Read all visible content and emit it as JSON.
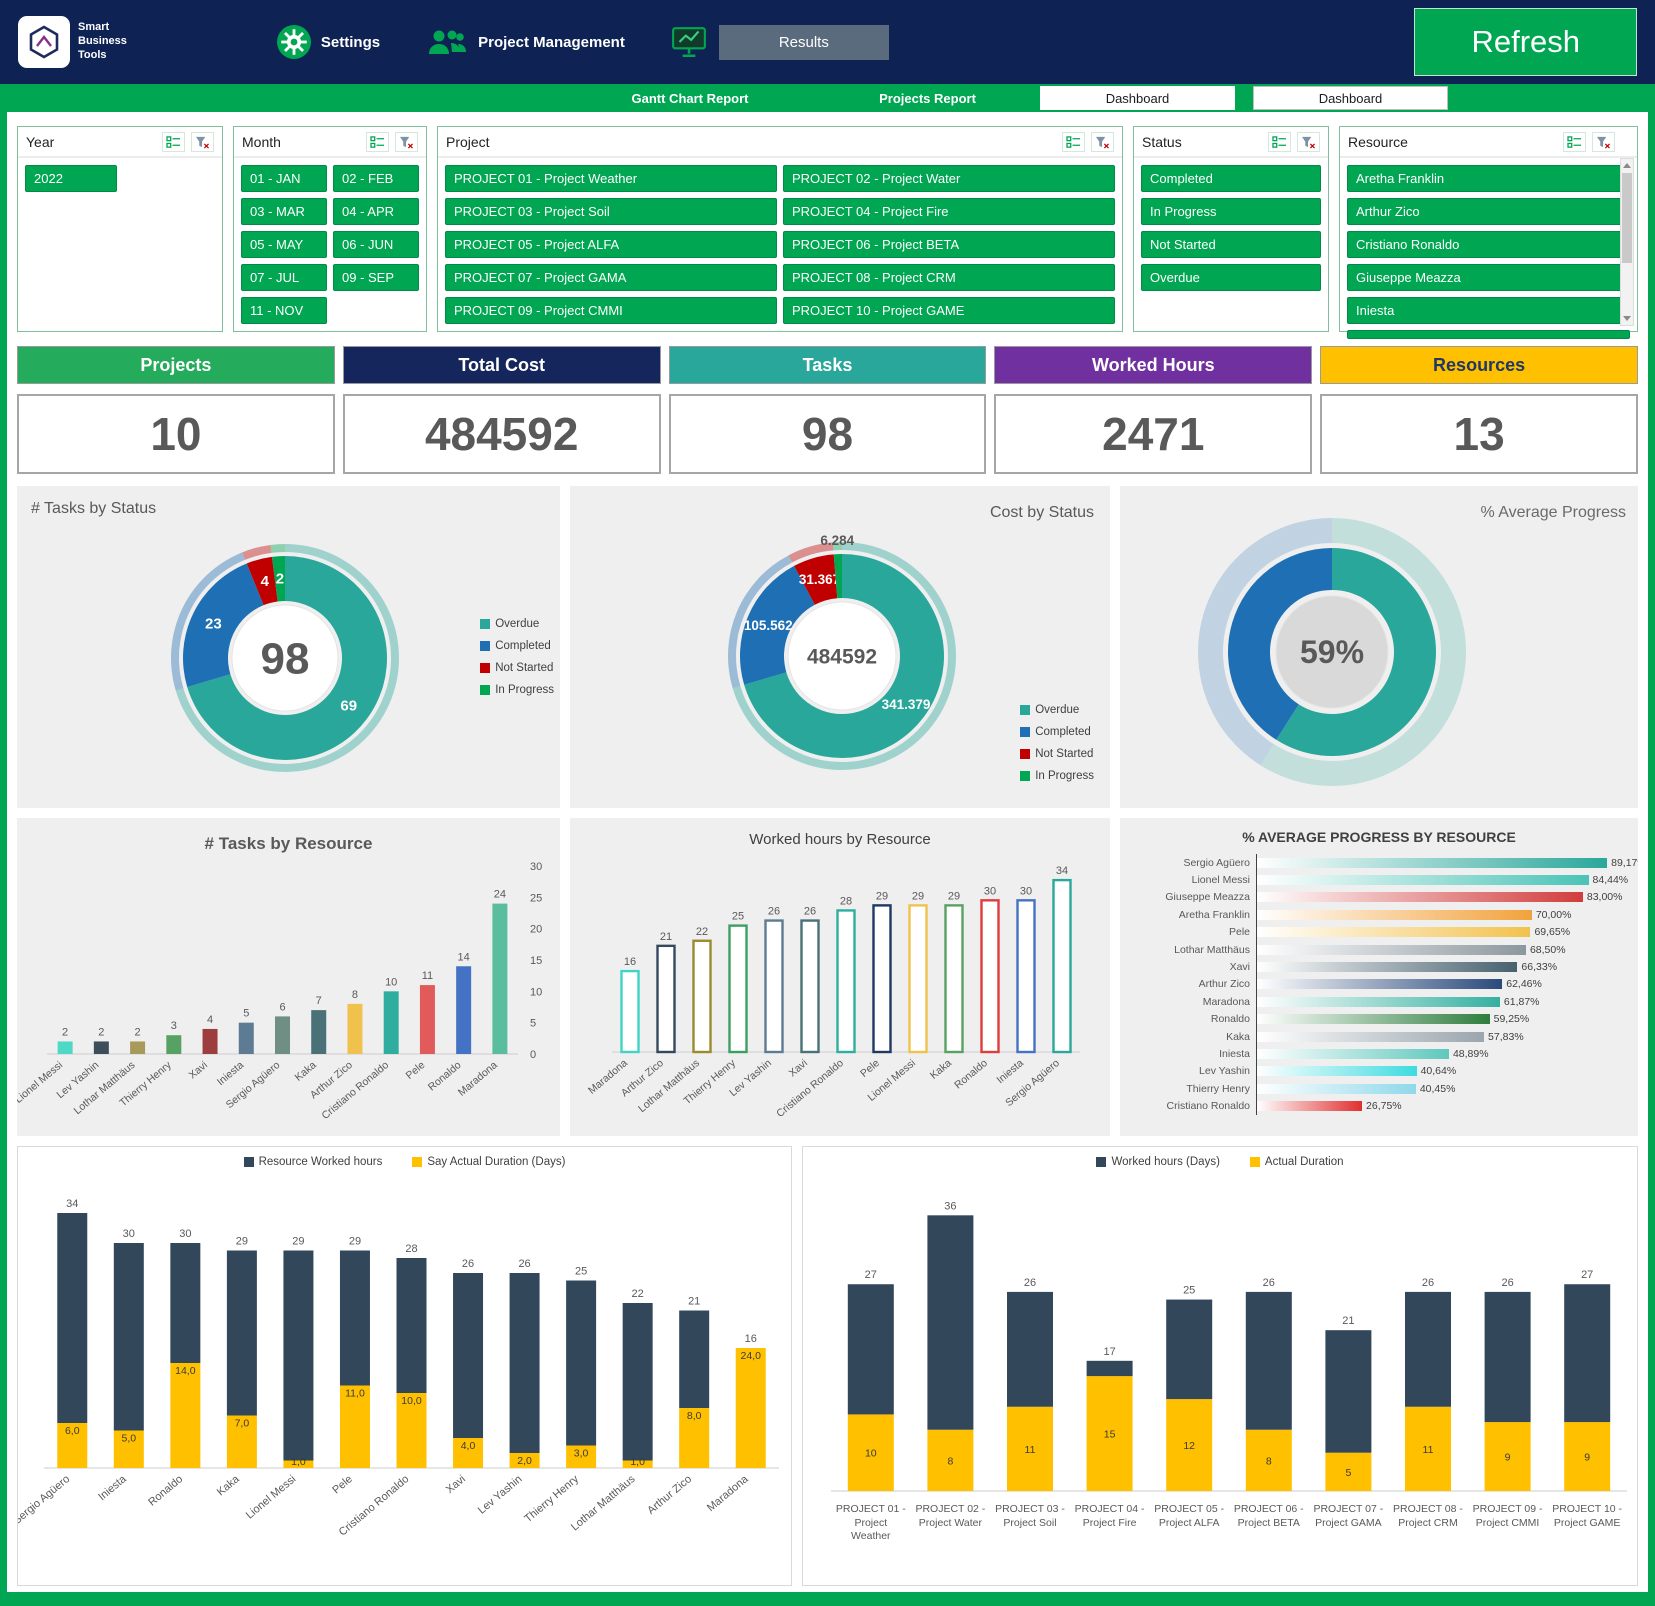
{
  "header": {
    "logo": {
      "line1": "Smart",
      "line2": "Business",
      "line3": "Tools"
    },
    "settings_label": "Settings",
    "pm_label": "Project Management",
    "results_label": "Results",
    "refresh_label": "Refresh"
  },
  "tabstrip": {
    "gantt": "Gantt Chart Report",
    "projects": "Projects Report",
    "dashboard1": "Dashboard",
    "dashboard2": "Dashboard"
  },
  "filters": {
    "year": {
      "title": "Year",
      "items": [
        "2022"
      ]
    },
    "month": {
      "title": "Month",
      "items": [
        "01 - JAN",
        "02 - FEB",
        "03 - MAR",
        "04 - APR",
        "05 - MAY",
        "06 - JUN",
        "07 - JUL",
        "09 - SEP",
        "11 - NOV"
      ]
    },
    "project": {
      "title": "Project",
      "items": [
        "PROJECT 01 - Project Weather",
        "PROJECT 02 - Project Water",
        "PROJECT 03 - Project Soil",
        "PROJECT 04 - Project Fire",
        "PROJECT 05 - Project ALFA",
        "PROJECT 06 - Project BETA",
        "PROJECT 07 - Project GAMA",
        "PROJECT 08 - Project CRM",
        "PROJECT 09 - Project CMMI",
        "PROJECT 10 - Project GAME"
      ]
    },
    "status": {
      "title": "Status",
      "items": [
        "Completed",
        "In Progress",
        "Not Started",
        "Overdue"
      ]
    },
    "resource": {
      "title": "Resource",
      "items": [
        "Aretha Franklin",
        "Arthur Zico",
        "Cristiano Ronaldo",
        "Giuseppe Meazza",
        "Iniesta"
      ]
    }
  },
  "kpis": [
    {
      "label": "Projects",
      "value": "10",
      "bg": "#24ab5b",
      "fg": "#ffffff"
    },
    {
      "label": "Total Cost",
      "value": "484592",
      "bg": "#15265c",
      "fg": "#ffffff"
    },
    {
      "label": "Tasks",
      "value": "98",
      "bg": "#2aa79b",
      "fg": "#ffffff"
    },
    {
      "label": "Worked Hours",
      "value": "2471",
      "bg": "#7030a0",
      "fg": "#ffffff"
    },
    {
      "label": "Resources",
      "value": "13",
      "bg": "#ffc000",
      "fg": "#1f3864"
    }
  ],
  "chart_data": [
    {
      "id": "tasks-by-status",
      "type": "pie",
      "title": "# Tasks by Status",
      "center_label": "98",
      "legend_position": "right",
      "slices": [
        {
          "label": "Overdue",
          "value": 69,
          "display": "69",
          "color": "#2aa79b"
        },
        {
          "label": "Completed",
          "value": 23,
          "display": "23",
          "color": "#1f6fb4"
        },
        {
          "label": "Not Started",
          "value": 4,
          "display": "4",
          "color": "#c00000"
        },
        {
          "label": "In Progress",
          "value": 2,
          "display": "2",
          "color": "#00a651"
        }
      ]
    },
    {
      "id": "cost-by-status",
      "type": "pie",
      "title": "Cost by Status",
      "center_label": "484592",
      "legend_position": "bottom-right",
      "slices": [
        {
          "label": "Overdue",
          "value": 341379,
          "display": "341.379",
          "color": "#2aa79b"
        },
        {
          "label": "Completed",
          "value": 105562,
          "display": "105.562",
          "color": "#1f6fb4"
        },
        {
          "label": "Not Started",
          "value": 31367,
          "display": "31.367",
          "color": "#c00000"
        },
        {
          "label": "In Progress",
          "value": 6284,
          "display": "6.284",
          "color": "#00a651"
        }
      ]
    },
    {
      "id": "average-progress",
      "type": "pie",
      "title": "% Average Progress",
      "center_label": "59%",
      "slices": [
        {
          "label": "",
          "value": 59,
          "display": "",
          "color": "#2aa79b"
        },
        {
          "label": "",
          "value": 41,
          "display": "",
          "color": "#1f6fb4"
        }
      ]
    },
    {
      "id": "tasks-by-resource",
      "type": "bar",
      "title": "# Tasks by Resource",
      "ylim": [
        0,
        30
      ],
      "yticks": [
        0,
        5,
        10,
        15,
        20,
        25,
        30
      ],
      "axis_side": "right",
      "categories": [
        "Lionel Messi",
        "Lev Yashin",
        "Lothar Matthäus",
        "Thierry Henry",
        "Xavi",
        "Iniesta",
        "Sergio Agüero",
        "Kaka",
        "Arthur Zico",
        "Cristiano Ronaldo",
        "Pele",
        "Ronaldo",
        "Maradona"
      ],
      "values": [
        2,
        2,
        2,
        3,
        4,
        5,
        6,
        7,
        8,
        10,
        11,
        14,
        24
      ],
      "colors": [
        "#4fd8c6",
        "#3c4e59",
        "#a89a5b",
        "#57a263",
        "#9e3d3d",
        "#5d7b92",
        "#6f8f85",
        "#4a7078",
        "#f0c24d",
        "#2fae9f",
        "#e25b5b",
        "#4472c4",
        "#5abd9e"
      ]
    },
    {
      "id": "hours-by-resource",
      "type": "bar",
      "title": "Worked hours by Resource",
      "style": "outline",
      "categories": [
        "Maradona",
        "Arthur Zico",
        "Lothar Matthäus",
        "Thierry Henry",
        "Lev Yashin",
        "Xavi",
        "Cristiano Ronaldo",
        "Pele",
        "Lionel Messi",
        "Kaka",
        "Ronaldo",
        "Iniesta",
        "Sergio Agüero"
      ],
      "values": [
        16,
        21,
        22,
        25,
        26,
        26,
        28,
        29,
        29,
        29,
        30,
        30,
        34
      ],
      "colors": [
        "#40d4c4",
        "#34495e",
        "#9c8a2e",
        "#3c9e63",
        "#5d7b92",
        "#4a7078",
        "#2fae9f",
        "#1f3864",
        "#f0c24d",
        "#57a263",
        "#e03c3c",
        "#4472c4",
        "#2aa79b"
      ]
    },
    {
      "id": "progress-by-resource",
      "type": "bar",
      "orientation": "horizontal",
      "title": "% AVERAGE PROGRESS BY RESOURCE",
      "rows": [
        {
          "name": "Sergio Agüero",
          "value": 89.17,
          "display": "89,17%",
          "color": "#2aa79b"
        },
        {
          "name": "Lionel Messi",
          "value": 84.44,
          "display": "84,44%",
          "color": "#49c3b6"
        },
        {
          "name": "Giuseppe Meazza",
          "value": 83.0,
          "display": "83,00%",
          "color": "#d23c3c"
        },
        {
          "name": "Aretha Franklin",
          "value": 70.0,
          "display": "70,00%",
          "color": "#f2a23c"
        },
        {
          "name": "Pele",
          "value": 69.65,
          "display": "69,65%",
          "color": "#f2c24d"
        },
        {
          "name": "Lothar Matthäus",
          "value": 68.5,
          "display": "68,50%",
          "color": "#8c979e"
        },
        {
          "name": "Xavi",
          "value": 66.33,
          "display": "66,33%",
          "color": "#46606e"
        },
        {
          "name": "Arthur Zico",
          "value": 62.46,
          "display": "62,46%",
          "color": "#2b4a7c"
        },
        {
          "name": "Maradona",
          "value": 61.87,
          "display": "61,87%",
          "color": "#35b0a0"
        },
        {
          "name": "Ronaldo",
          "value": 59.25,
          "display": "59,25%",
          "color": "#2e7d3e"
        },
        {
          "name": "Kaka",
          "value": 57.83,
          "display": "57,83%",
          "color": "#9aa5ad"
        },
        {
          "name": "Iniesta",
          "value": 48.89,
          "display": "48,89%",
          "color": "#5fc8bd"
        },
        {
          "name": "Lev Yashin",
          "value": 40.64,
          "display": "40,64%",
          "color": "#3ddbe0"
        },
        {
          "name": "Thierry Henry",
          "value": 40.45,
          "display": "40,45%",
          "color": "#8fd8ea"
        },
        {
          "name": "Cristiano Ronaldo",
          "value": 26.75,
          "display": "26,75%",
          "color": "#e03030"
        }
      ]
    },
    {
      "id": "resource-hours-duration",
      "type": "bar",
      "style": "stacked",
      "legend": [
        {
          "label": "Resource Worked hours",
          "color": "#33475b"
        },
        {
          "label": "Say Actual Duration (Days)",
          "color": "#ffc000"
        }
      ],
      "categories": [
        "Sergio Agüero",
        "Iniesta",
        "Ronaldo",
        "Kaka",
        "Lionel Messi",
        "Pele",
        "Cristiano Ronaldo",
        "Xavi",
        "Lev Yashin",
        "Thierry Henry",
        "Lothar Matthäus",
        "Arthur Zico",
        "Maradona"
      ],
      "totals": [
        34,
        30,
        30,
        29,
        29,
        29,
        28,
        26,
        26,
        25,
        22,
        21,
        16
      ],
      "durations": [
        6,
        5,
        14,
        7,
        1,
        11,
        10,
        4,
        2,
        3,
        1,
        8,
        24
      ],
      "duration_labels": [
        "6,0",
        "5,0",
        "14,0",
        "7,0",
        "1,0",
        "11,0",
        "10,0",
        "4,0",
        "2,0",
        "3,0",
        "1,0",
        "8,0",
        "24,0"
      ]
    },
    {
      "id": "project-hours-duration",
      "type": "bar",
      "style": "stacked",
      "legend": [
        {
          "label": "Worked hours (Days)",
          "color": "#33475b"
        },
        {
          "label": "Actual Duration",
          "color": "#ffc000"
        }
      ],
      "categories": [
        "PROJECT 01 - Project Weather",
        "PROJECT 02 - Project Water",
        "PROJECT 03 - Project Soil",
        "PROJECT 04 - Project Fire",
        "PROJECT 05 - Project ALFA",
        "PROJECT 06 - Project BETA",
        "PROJECT 07 - Project GAMA",
        "PROJECT 08 - Project CRM",
        "PROJECT 09 - Project CMMI",
        "PROJECT 10 - Project GAME"
      ],
      "totals": [
        27,
        36,
        26,
        17,
        25,
        26,
        21,
        26,
        26,
        27
      ],
      "durations": [
        10,
        8,
        11,
        15,
        12,
        8,
        5,
        11,
        9,
        9
      ],
      "duration_labels": [
        "10",
        "8",
        "11",
        "15",
        "12",
        "8",
        "5",
        "11",
        "9",
        "9"
      ]
    }
  ]
}
